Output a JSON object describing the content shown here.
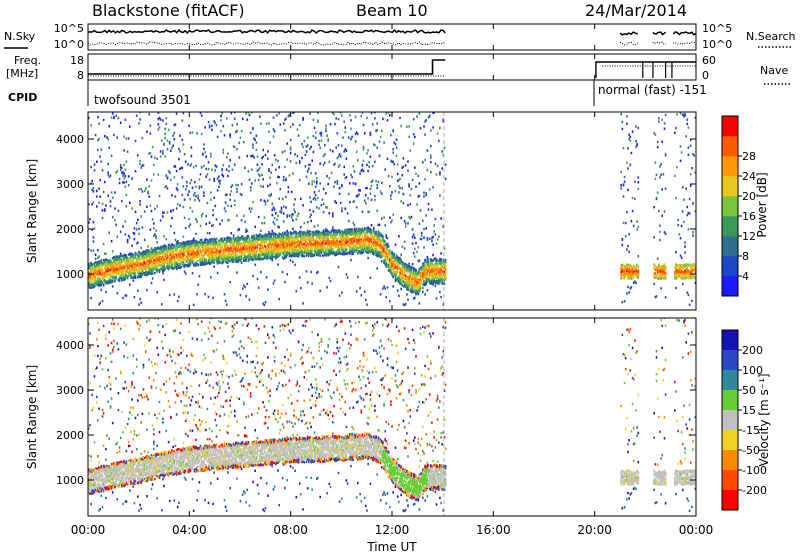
{
  "header": {
    "station": "Blackstone (fitACF)",
    "beam": "Beam 10",
    "date": "24/Mar/2014"
  },
  "noise_panel": {
    "left_label": "N.Sky",
    "right_label": "N.Search",
    "left_ticks": [
      "10^5",
      "10^0"
    ],
    "right_ticks": [
      "10^5",
      "10^0"
    ]
  },
  "freq_panel": {
    "left_label_line1": "Freq.",
    "left_label_line2": "[MHz]",
    "right_label": "Nave",
    "left_ticks": [
      "18",
      "8"
    ],
    "right_ticks": [
      "60",
      "0"
    ]
  },
  "cpid_panel": {
    "label": "CPID",
    "mode1": "twofsound 3501",
    "mode2": "normal (fast) -151"
  },
  "power_panel": {
    "ylabel": "Slant Range [km]",
    "yticks": [
      "1000",
      "2000",
      "3000",
      "4000"
    ],
    "colorbar_label": "Power [dB]",
    "colorbar_ticks": [
      "4",
      "8",
      "12",
      "16",
      "20",
      "24",
      "28"
    ]
  },
  "velocity_panel": {
    "ylabel": "Slant Range [km]",
    "yticks": [
      "1000",
      "2000",
      "3000",
      "4000"
    ],
    "colorbar_label": "Velocity [m s⁻¹]",
    "colorbar_ticks": [
      "200",
      "100",
      "50",
      "15",
      "-15",
      "-50",
      "-100",
      "-200"
    ]
  },
  "xaxis": {
    "title": "Time UT",
    "ticks": [
      "00:00",
      "04:00",
      "08:00",
      "12:00",
      "16:00",
      "20:00",
      "00:00"
    ]
  },
  "chart_data": [
    {
      "type": "heatmap",
      "title": "Blackstone (fitACF) Beam 10 24/Mar/2014",
      "xlabel": "Time UT",
      "ylabel": "Slant Range [km]",
      "colorbar_label": "Power [dB]",
      "colorbar_ticks": [
        4,
        8,
        12,
        16,
        20,
        24,
        28
      ],
      "xlim_hours": [
        0,
        24
      ],
      "ylim_km": [
        200,
        4600
      ],
      "colors": [
        "#1a1aff",
        "#1e46c8",
        "#2e6e8e",
        "#3a9a5a",
        "#7cc43c",
        "#e8c81e",
        "#ff9a00",
        "#ff5a00",
        "#ff0000"
      ],
      "ridge": [
        {
          "t": 0.0,
          "r": 950
        },
        {
          "t": 1.0,
          "r": 1100
        },
        {
          "t": 2.0,
          "r": 1200
        },
        {
          "t": 3.0,
          "r": 1350
        },
        {
          "t": 4.0,
          "r": 1450
        },
        {
          "t": 6.0,
          "r": 1550
        },
        {
          "t": 8.0,
          "r": 1650
        },
        {
          "t": 10.0,
          "r": 1700
        },
        {
          "t": 11.0,
          "r": 1750
        },
        {
          "t": 11.5,
          "r": 1650
        },
        {
          "t": 12.0,
          "r": 1200
        },
        {
          "t": 12.6,
          "r": 900
        },
        {
          "t": 13.0,
          "r": 800
        },
        {
          "t": 13.3,
          "r": 1050
        },
        {
          "t": 14.0,
          "r": 1050
        }
      ],
      "data_blocks_hours": [
        [
          0.0,
          14.1
        ],
        [
          21.0,
          21.7
        ],
        [
          22.3,
          22.8
        ],
        [
          23.1,
          24.0
        ]
      ]
    },
    {
      "type": "heatmap",
      "xlabel": "Time UT",
      "ylabel": "Slant Range [km]",
      "colorbar_label": "Velocity [m s⁻¹]",
      "colorbar_ticks": [
        200,
        100,
        50,
        15,
        -15,
        -50,
        -100,
        -200
      ],
      "xlim_hours": [
        0,
        24
      ],
      "ylim_km": [
        200,
        4600
      ],
      "colors": [
        "#1414b4",
        "#2848c8",
        "#2e8a9a",
        "#66cc33",
        "#c0c0c0",
        "#f0d020",
        "#ff8a00",
        "#ff4a00",
        "#ff0000"
      ],
      "data_blocks_hours": [
        [
          0.0,
          14.1
        ],
        [
          21.0,
          21.7
        ],
        [
          22.3,
          22.8
        ],
        [
          23.1,
          24.0
        ]
      ]
    }
  ]
}
